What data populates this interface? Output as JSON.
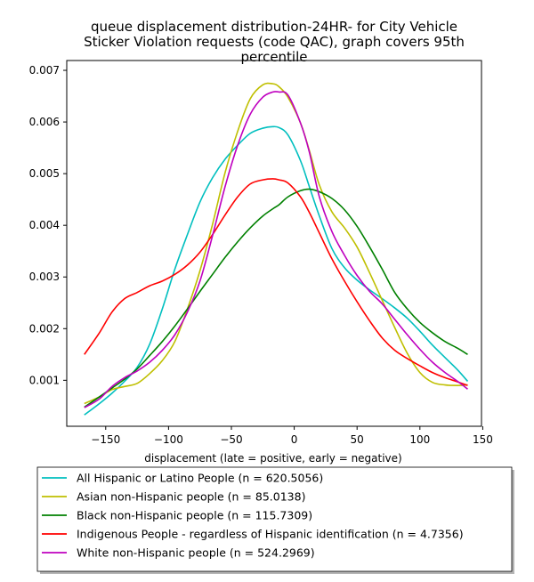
{
  "chart_data": {
    "type": "line",
    "title": "queue displacement distribution-24HR-  for City Vehicle\nSticker Violation  requests (code QAC), graph covers 95th\npercentile",
    "xlabel": "displacement (late = positive, early = negative)",
    "ylabel": "",
    "xlim": [
      -181,
      149
    ],
    "ylim": [
      0.00011,
      0.00719
    ],
    "x_ticks": [
      -150,
      -100,
      -50,
      0,
      50,
      100,
      150
    ],
    "x_tick_labels": [
      "−150",
      "−100",
      "−50",
      "0",
      "50",
      "100",
      "150"
    ],
    "y_ticks": [
      0.001,
      0.002,
      0.003,
      0.004,
      0.005,
      0.006,
      0.007
    ],
    "y_tick_labels": [
      "0.001",
      "0.002",
      "0.003",
      "0.004",
      "0.005",
      "0.006",
      "0.007"
    ],
    "grid": false,
    "legend_position": "bottom-outside",
    "x": [
      -167,
      -155,
      -145,
      -135,
      -125,
      -115,
      -105,
      -95,
      -85,
      -75,
      -65,
      -55,
      -45,
      -35,
      -25,
      -17,
      -12,
      -5,
      5,
      12,
      20,
      30,
      40,
      50,
      60,
      70,
      80,
      90,
      100,
      110,
      120,
      130,
      138
    ],
    "series": [
      {
        "name": "All Hispanic or Latino People (n = 620.5056)",
        "color": "#00bfbf",
        "values": [
          0.00033,
          0.00055,
          0.00075,
          0.00098,
          0.00125,
          0.0017,
          0.00238,
          0.00315,
          0.00382,
          0.00445,
          0.00492,
          0.00528,
          0.00555,
          0.00578,
          0.00588,
          0.00591,
          0.00589,
          0.00575,
          0.00525,
          0.00475,
          0.00418,
          0.00355,
          0.00318,
          0.00294,
          0.00275,
          0.00258,
          0.0024,
          0.0022,
          0.00195,
          0.00168,
          0.00144,
          0.0012,
          0.00098
        ]
      },
      {
        "name": "Asian non-Hispanic people (n = 85.0138)",
        "color": "#bfbf00",
        "values": [
          0.00055,
          0.00068,
          0.00082,
          0.00088,
          0.00094,
          0.00113,
          0.00138,
          0.00175,
          0.00238,
          0.00312,
          0.00402,
          0.00502,
          0.00582,
          0.00645,
          0.00672,
          0.00674,
          0.00668,
          0.00648,
          0.00598,
          0.00545,
          0.00478,
          0.00426,
          0.00395,
          0.00358,
          0.00308,
          0.00255,
          0.00202,
          0.00152,
          0.00115,
          0.00096,
          0.00091,
          0.0009,
          0.00091
        ]
      },
      {
        "name": "Black non-Hispanic people (n = 115.7309)",
        "color": "#008000",
        "values": [
          0.00048,
          0.00068,
          0.00085,
          0.00102,
          0.00122,
          0.00148,
          0.00175,
          0.00205,
          0.00238,
          0.00272,
          0.00305,
          0.00338,
          0.00368,
          0.00395,
          0.00418,
          0.00432,
          0.0044,
          0.00455,
          0.00467,
          0.0047,
          0.00465,
          0.00452,
          0.0043,
          0.00398,
          0.00358,
          0.00315,
          0.0027,
          0.00238,
          0.00212,
          0.00192,
          0.00175,
          0.00162,
          0.0015
        ]
      },
      {
        "name": "Indigenous People - regardless of Hispanic identification (n = 4.7356)",
        "color": "#ff0000",
        "values": [
          0.0015,
          0.00192,
          0.00232,
          0.00258,
          0.0027,
          0.00283,
          0.00292,
          0.00305,
          0.00323,
          0.00348,
          0.00382,
          0.0042,
          0.00455,
          0.0048,
          0.00488,
          0.0049,
          0.00488,
          0.00482,
          0.00455,
          0.00425,
          0.00385,
          0.00335,
          0.00292,
          0.00252,
          0.00215,
          0.00182,
          0.00158,
          0.00142,
          0.00128,
          0.00115,
          0.00105,
          0.00097,
          0.0009
        ]
      },
      {
        "name": "White non-Hispanic people (n = 524.2969)",
        "color": "#bf00bf",
        "values": [
          0.00047,
          0.00064,
          0.00088,
          0.00105,
          0.00118,
          0.00135,
          0.00158,
          0.00188,
          0.00232,
          0.00292,
          0.0038,
          0.00475,
          0.00555,
          0.00615,
          0.00648,
          0.00658,
          0.00658,
          0.00652,
          0.00598,
          0.00542,
          0.00455,
          0.00388,
          0.00342,
          0.00303,
          0.00272,
          0.00248,
          0.00218,
          0.00188,
          0.0016,
          0.00135,
          0.00115,
          0.00098,
          0.00083
        ]
      }
    ]
  }
}
